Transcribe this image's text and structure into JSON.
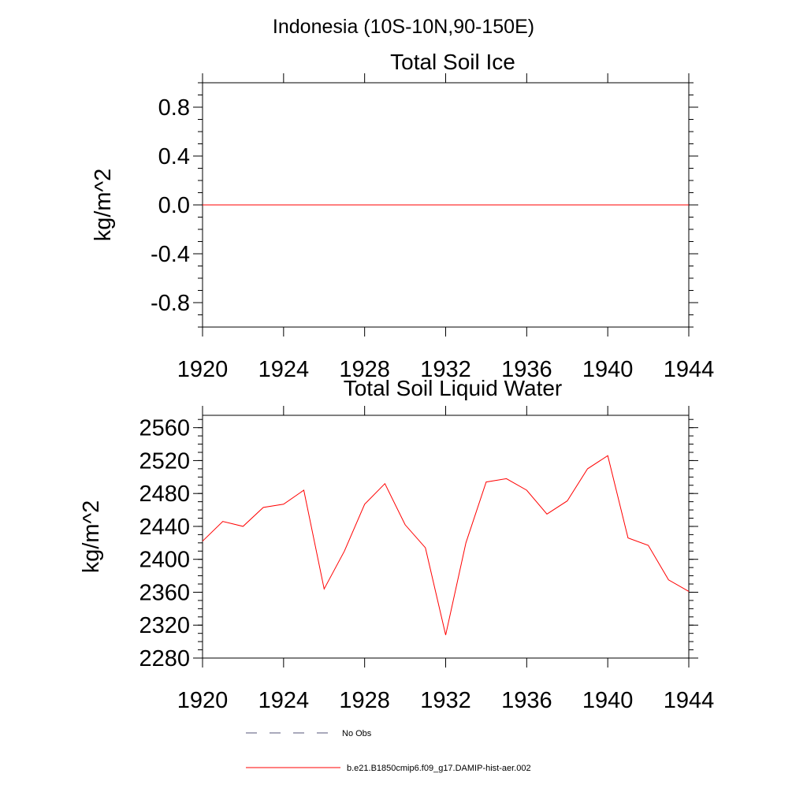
{
  "figure_title": "Indonesia (10S-10N,90-150E)",
  "legend": {
    "entries": [
      {
        "label": "No Obs",
        "style": "dashed",
        "color": "#55557a"
      },
      {
        "label": "b.e21.B1850cmip6.f09_g17.DAMIP-hist-aer.002",
        "style": "solid",
        "color": "#ff0000"
      }
    ]
  },
  "chart_data": [
    {
      "type": "line",
      "title": "Total Soil Ice",
      "xlabel": "",
      "ylabel": "kg/m^2",
      "xlim": [
        1920,
        1944
      ],
      "ylim": [
        -1.0,
        1.0
      ],
      "x_ticks": [
        1920,
        1924,
        1928,
        1932,
        1936,
        1940,
        1944
      ],
      "y_ticks": [
        -0.8,
        -0.4,
        0.0,
        0.4,
        0.8
      ],
      "y_tick_labels": [
        "-0.8",
        "-0.4",
        "0.0",
        "0.4",
        "0.8"
      ],
      "grid": false,
      "series": [
        {
          "color": "#ff0000",
          "x": [
            1920,
            1921,
            1922,
            1923,
            1924,
            1925,
            1926,
            1927,
            1928,
            1929,
            1930,
            1931,
            1932,
            1933,
            1934,
            1935,
            1936,
            1937,
            1938,
            1939,
            1940,
            1941,
            1942,
            1943,
            1944
          ],
          "values": [
            0,
            0,
            0,
            0,
            0,
            0,
            0,
            0,
            0,
            0,
            0,
            0,
            0,
            0,
            0,
            0,
            0,
            0,
            0,
            0,
            0,
            0,
            0,
            0,
            0
          ]
        }
      ]
    },
    {
      "type": "line",
      "title": "Total Soil Liquid Water",
      "xlabel": "",
      "ylabel": "kg/m^2",
      "xlim": [
        1920,
        1944
      ],
      "ylim": [
        2280,
        2575
      ],
      "x_ticks": [
        1920,
        1924,
        1928,
        1932,
        1936,
        1940,
        1944
      ],
      "y_ticks": [
        2280,
        2320,
        2360,
        2400,
        2440,
        2480,
        2520,
        2560
      ],
      "y_tick_labels": [
        "2280",
        "2320",
        "2360",
        "2400",
        "2440",
        "2480",
        "2520",
        "2560"
      ],
      "grid": false,
      "series": [
        {
          "color": "#ff0000",
          "x": [
            1920,
            1921,
            1922,
            1923,
            1924,
            1925,
            1926,
            1927,
            1928,
            1929,
            1930,
            1931,
            1932,
            1933,
            1934,
            1935,
            1936,
            1937,
            1938,
            1939,
            1940,
            1941,
            1942,
            1943,
            1944
          ],
          "values": [
            2422,
            2446,
            2440,
            2463,
            2467,
            2484,
            2364,
            2410,
            2467,
            2492,
            2442,
            2414,
            2308,
            2420,
            2494,
            2498,
            2484,
            2455,
            2471,
            2510,
            2526,
            2426,
            2417,
            2375,
            2361
          ]
        }
      ]
    }
  ]
}
